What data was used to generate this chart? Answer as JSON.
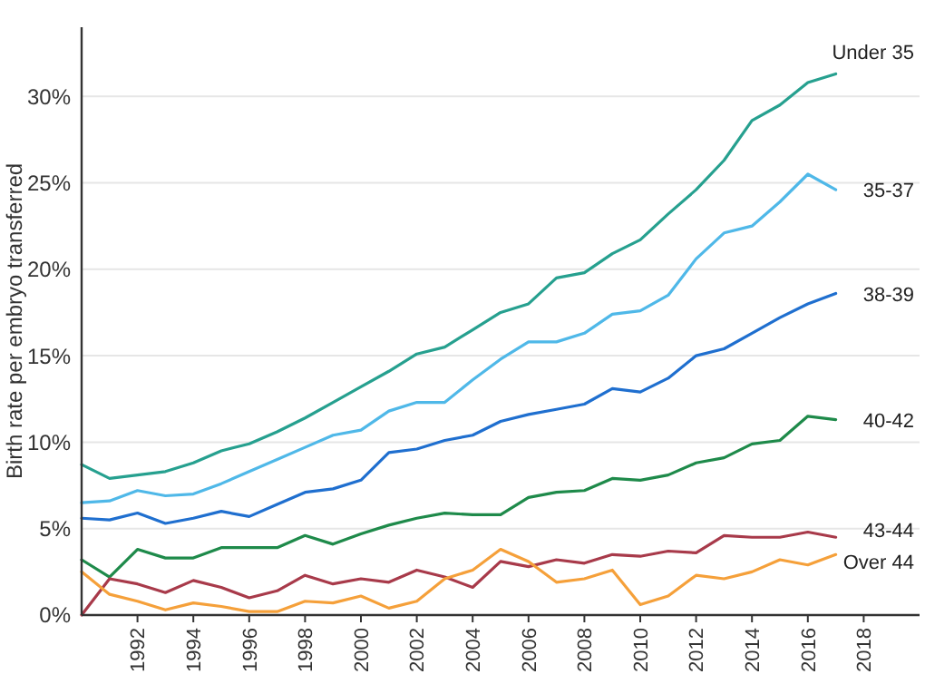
{
  "chart_data": {
    "type": "line",
    "ylabel": "Birth rate per embryo transferred",
    "x": [
      1990,
      1991,
      1992,
      1993,
      1994,
      1995,
      1996,
      1997,
      1998,
      1999,
      2000,
      2001,
      2002,
      2003,
      2004,
      2005,
      2006,
      2007,
      2008,
      2009,
      2010,
      2011,
      2012,
      2013,
      2014,
      2015,
      2016,
      2017
    ],
    "xlim": [
      1990,
      2020
    ],
    "xticks": [
      1992,
      1994,
      1996,
      1998,
      2000,
      2002,
      2004,
      2006,
      2008,
      2010,
      2012,
      2014,
      2016,
      2018
    ],
    "ylim": [
      0,
      34
    ],
    "yticks": [
      {
        "value": 0,
        "label": "0%"
      },
      {
        "value": 5,
        "label": "5%"
      },
      {
        "value": 10,
        "label": "10%"
      },
      {
        "value": 15,
        "label": "15%"
      },
      {
        "value": 20,
        "label": "20%"
      },
      {
        "value": 25,
        "label": "25%"
      },
      {
        "value": 30,
        "label": "30%"
      }
    ],
    "grid": "y",
    "legend": false,
    "marker": "none",
    "line_style": "solid",
    "series": [
      {
        "name": "Under 35",
        "color": "#26a08f",
        "values": [
          8.7,
          7.9,
          8.1,
          8.3,
          8.8,
          9.5,
          9.9,
          10.6,
          11.4,
          12.3,
          13.2,
          14.1,
          15.1,
          15.5,
          16.5,
          17.5,
          18.0,
          19.5,
          19.8,
          20.9,
          21.7,
          23.2,
          24.6,
          26.3,
          28.6,
          29.5,
          30.8,
          31.3
        ]
      },
      {
        "name": "35-37",
        "color": "#4fb8e8",
        "values": [
          6.5,
          6.6,
          7.2,
          6.9,
          7.0,
          7.6,
          8.3,
          9.0,
          9.7,
          10.4,
          10.7,
          11.8,
          12.3,
          12.3,
          13.6,
          14.8,
          15.8,
          15.8,
          16.3,
          17.4,
          17.6,
          18.5,
          20.6,
          22.1,
          22.5,
          23.9,
          25.5,
          24.6
        ]
      },
      {
        "name": "38-39",
        "color": "#1f6fcf",
        "values": [
          5.6,
          5.5,
          5.9,
          5.3,
          5.6,
          6.0,
          5.7,
          6.4,
          7.1,
          7.3,
          7.8,
          9.4,
          9.6,
          10.1,
          10.4,
          11.2,
          11.6,
          11.9,
          12.2,
          13.1,
          12.9,
          13.7,
          15.0,
          15.4,
          16.3,
          17.2,
          18.0,
          18.6
        ]
      },
      {
        "name": "40-42",
        "color": "#1e8a4a",
        "values": [
          3.2,
          2.2,
          3.8,
          3.3,
          3.3,
          3.9,
          3.9,
          3.9,
          4.6,
          4.1,
          4.7,
          5.2,
          5.6,
          5.9,
          5.8,
          5.8,
          6.8,
          7.1,
          7.2,
          7.9,
          7.8,
          8.1,
          8.8,
          9.1,
          9.9,
          10.1,
          11.5,
          11.3
        ]
      },
      {
        "name": "43-44",
        "color": "#a83a4a",
        "values": [
          0,
          2.1,
          1.8,
          1.3,
          2.0,
          1.6,
          1.0,
          1.4,
          2.3,
          1.8,
          2.1,
          1.9,
          2.6,
          2.2,
          1.6,
          3.1,
          2.8,
          3.2,
          3.0,
          3.5,
          3.4,
          3.7,
          3.6,
          4.6,
          4.5,
          4.5,
          4.8,
          4.5
        ]
      },
      {
        "name": "Over 44",
        "color": "#f5a03a",
        "values": [
          2.5,
          1.2,
          0.8,
          0.3,
          0.7,
          0.5,
          0.2,
          0.2,
          0.8,
          0.7,
          1.1,
          0.4,
          0.8,
          2.1,
          2.6,
          3.8,
          3.1,
          1.9,
          2.1,
          2.6,
          0.6,
          1.1,
          2.3,
          2.1,
          2.5,
          3.2,
          2.9,
          3.5
        ]
      }
    ]
  }
}
